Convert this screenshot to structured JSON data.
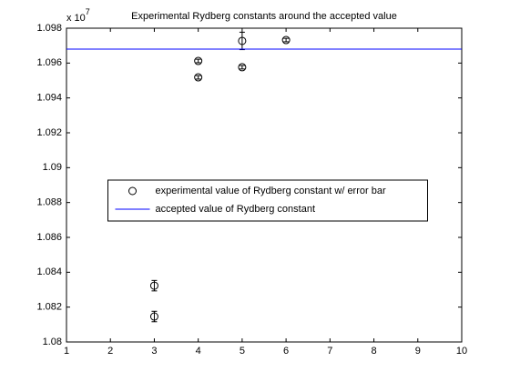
{
  "chart_data": {
    "type": "errorbar",
    "title": "Experimental Rydberg constants around the accepted value",
    "multiplier": {
      "base": "x 10",
      "power": "7"
    },
    "series": [
      {
        "name": "experimental value of Rydberg constant w/ error bar",
        "type": "scatter",
        "color": "#000000",
        "x": [
          3,
          3,
          4,
          4,
          5,
          5,
          6
        ],
        "values": [
          1.08323,
          1.08146,
          1.09612,
          1.09518,
          1.09727,
          1.09576,
          1.09732
        ],
        "errors": [
          0.0003,
          0.0003,
          0.0001,
          0.0001,
          0.0005,
          0.0001,
          0.0001
        ]
      },
      {
        "name": "accepted value of Rydberg constant",
        "type": "line",
        "color": "#0000ff",
        "x": [
          1,
          10
        ],
        "values": [
          1.0968,
          1.0968
        ]
      }
    ],
    "xlim": [
      1,
      10
    ],
    "xticks": [
      1,
      2,
      3,
      4,
      5,
      6,
      7,
      8,
      9,
      10
    ],
    "ylim": [
      1.08,
      1.098
    ],
    "yticks": [
      1.08,
      1.082,
      1.084,
      1.086,
      1.088,
      1.09,
      1.092,
      1.094,
      1.096,
      1.098
    ],
    "legend": "center"
  }
}
